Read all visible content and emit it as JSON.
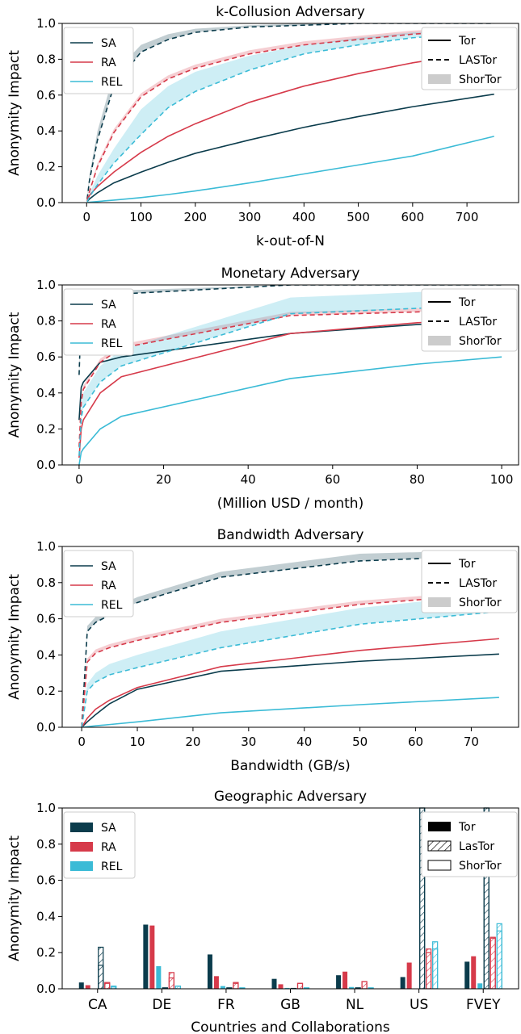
{
  "colors": {
    "SA": "#0b3c4c",
    "RA": "#d63a4a",
    "REL": "#3bbbd6",
    "tor": "#000000",
    "shortor_legend": "#cccccc"
  },
  "chart_data": [
    {
      "type": "line",
      "title": "k-Collusion Adversary",
      "xlabel": "k-out-of-N",
      "ylabel": "Anonymity Impact",
      "xlim": [
        -45,
        795
      ],
      "ylim": [
        0,
        1.0
      ],
      "xticks": [
        0,
        100,
        200,
        300,
        400,
        500,
        600,
        700
      ],
      "yticks": [
        0.0,
        0.2,
        0.4,
        0.6,
        0.8,
        1.0
      ],
      "x": [
        1,
        5,
        20,
        50,
        100,
        150,
        200,
        300,
        400,
        500,
        600,
        750
      ],
      "series": [
        {
          "name": "SA",
          "variant": "Tor",
          "values": [
            0.005,
            0.02,
            0.055,
            0.11,
            0.17,
            0.225,
            0.275,
            0.35,
            0.42,
            0.48,
            0.535,
            0.605
          ]
        },
        {
          "name": "RA",
          "variant": "Tor",
          "values": [
            0.01,
            0.04,
            0.09,
            0.17,
            0.28,
            0.37,
            0.44,
            0.56,
            0.65,
            0.72,
            0.78,
            0.85
          ]
        },
        {
          "name": "REL",
          "variant": "Tor",
          "values": [
            0.0,
            0.002,
            0.006,
            0.014,
            0.028,
            0.045,
            0.065,
            0.11,
            0.16,
            0.21,
            0.26,
            0.37
          ]
        },
        {
          "name": "SA",
          "variant": "LASTor",
          "values": [
            0.02,
            0.12,
            0.35,
            0.65,
            0.84,
            0.91,
            0.95,
            0.98,
            0.99,
            1.0,
            1.0,
            1.0
          ]
        },
        {
          "name": "RA",
          "variant": "LASTor",
          "values": [
            0.01,
            0.06,
            0.2,
            0.39,
            0.59,
            0.69,
            0.75,
            0.83,
            0.88,
            0.91,
            0.94,
            0.97
          ]
        },
        {
          "name": "REL",
          "variant": "LASTor",
          "values": [
            0.005,
            0.03,
            0.1,
            0.22,
            0.38,
            0.53,
            0.62,
            0.74,
            0.83,
            0.88,
            0.92,
            0.95
          ]
        }
      ],
      "bands": [
        {
          "name": "SA",
          "variant": "ShorTor",
          "lower": [
            0.02,
            0.12,
            0.35,
            0.65,
            0.84,
            0.91,
            0.95,
            0.98,
            0.99,
            1.0,
            1.0,
            1.0
          ],
          "upper": [
            0.03,
            0.15,
            0.4,
            0.72,
            0.88,
            0.94,
            0.97,
            0.99,
            1.0,
            1.0,
            1.0,
            1.0
          ]
        },
        {
          "name": "RA",
          "variant": "ShorTor",
          "lower": [
            0.01,
            0.06,
            0.2,
            0.39,
            0.59,
            0.69,
            0.75,
            0.83,
            0.88,
            0.91,
            0.94,
            0.97
          ],
          "upper": [
            0.015,
            0.07,
            0.22,
            0.41,
            0.61,
            0.71,
            0.77,
            0.85,
            0.9,
            0.93,
            0.96,
            0.98
          ]
        },
        {
          "name": "REL",
          "variant": "ShorTor",
          "lower": [
            0.005,
            0.03,
            0.1,
            0.22,
            0.38,
            0.53,
            0.62,
            0.74,
            0.83,
            0.88,
            0.92,
            0.95
          ],
          "upper": [
            0.01,
            0.05,
            0.15,
            0.3,
            0.52,
            0.65,
            0.73,
            0.82,
            0.88,
            0.92,
            0.95,
            0.97
          ]
        }
      ]
    },
    {
      "type": "line",
      "title": "Monetary Adversary",
      "xlabel": "(Million USD / month)",
      "ylabel": "Anonymity Impact",
      "xlim": [
        -4,
        104
      ],
      "ylim": [
        0,
        1.0
      ],
      "xticks": [
        0,
        20,
        40,
        60,
        80,
        100
      ],
      "yticks": [
        0.0,
        0.2,
        0.4,
        0.6,
        0.8,
        1.0
      ],
      "x": [
        0,
        0.5,
        1,
        5,
        10,
        50,
        80,
        100
      ],
      "series": [
        {
          "name": "SA",
          "variant": "Tor",
          "values": [
            0.25,
            0.43,
            0.46,
            0.57,
            0.6,
            0.73,
            0.78,
            0.8
          ]
        },
        {
          "name": "RA",
          "variant": "Tor",
          "values": [
            0.04,
            0.2,
            0.25,
            0.4,
            0.49,
            0.73,
            0.79,
            0.81
          ]
        },
        {
          "name": "REL",
          "variant": "Tor",
          "values": [
            0.0,
            0.07,
            0.09,
            0.2,
            0.27,
            0.48,
            0.56,
            0.6
          ]
        },
        {
          "name": "SA",
          "variant": "LASTor",
          "values": [
            0.5,
            0.85,
            0.88,
            0.93,
            0.95,
            1.0,
            1.0,
            1.0
          ]
        },
        {
          "name": "RA",
          "variant": "LASTor",
          "values": [
            0.1,
            0.35,
            0.42,
            0.57,
            0.65,
            0.83,
            0.85,
            0.87
          ]
        },
        {
          "name": "REL",
          "variant": "LASTor",
          "values": [
            0.05,
            0.26,
            0.32,
            0.46,
            0.55,
            0.84,
            0.87,
            0.89
          ]
        }
      ],
      "bands": [
        {
          "name": "SA",
          "variant": "ShorTor",
          "lower": [
            0.5,
            0.85,
            0.88,
            0.93,
            0.95,
            1.0,
            1.0,
            1.0
          ],
          "upper": [
            0.55,
            0.88,
            0.9,
            0.95,
            0.97,
            1.0,
            1.0,
            1.0
          ]
        },
        {
          "name": "RA",
          "variant": "ShorTor",
          "lower": [
            0.1,
            0.35,
            0.42,
            0.57,
            0.65,
            0.83,
            0.85,
            0.87
          ],
          "upper": [
            0.12,
            0.37,
            0.44,
            0.59,
            0.67,
            0.85,
            0.87,
            0.89
          ]
        },
        {
          "name": "REL",
          "variant": "ShorTor",
          "lower": [
            0.05,
            0.26,
            0.32,
            0.46,
            0.55,
            0.84,
            0.87,
            0.89
          ],
          "upper": [
            0.08,
            0.33,
            0.4,
            0.55,
            0.64,
            0.93,
            0.96,
            0.98
          ]
        }
      ]
    },
    {
      "type": "line",
      "title": "Bandwidth Adversary",
      "xlabel": "Bandwidth (GB/s)",
      "ylabel": "Anonymity Impact",
      "xlim": [
        -3.5,
        78.5
      ],
      "ylim": [
        0,
        1.0
      ],
      "xticks": [
        0,
        10,
        20,
        30,
        40,
        50,
        60,
        70
      ],
      "yticks": [
        0.0,
        0.2,
        0.4,
        0.6,
        0.8,
        1.0
      ],
      "x": [
        0,
        1,
        2.5,
        5,
        10,
        25,
        50,
        75
      ],
      "series": [
        {
          "name": "SA",
          "variant": "Tor",
          "values": [
            0.0,
            0.03,
            0.07,
            0.13,
            0.21,
            0.31,
            0.365,
            0.405
          ]
        },
        {
          "name": "RA",
          "variant": "Tor",
          "values": [
            0.0,
            0.05,
            0.1,
            0.15,
            0.22,
            0.335,
            0.425,
            0.49
          ]
        },
        {
          "name": "REL",
          "variant": "Tor",
          "values": [
            0.0,
            0.003,
            0.008,
            0.015,
            0.03,
            0.08,
            0.125,
            0.165
          ]
        },
        {
          "name": "SA",
          "variant": "LASTor",
          "values": [
            0.0,
            0.53,
            0.58,
            0.62,
            0.69,
            0.83,
            0.92,
            0.95
          ]
        },
        {
          "name": "RA",
          "variant": "LASTor",
          "values": [
            0.0,
            0.36,
            0.41,
            0.44,
            0.48,
            0.58,
            0.68,
            0.74
          ]
        },
        {
          "name": "REL",
          "variant": "LASTor",
          "values": [
            0.0,
            0.2,
            0.25,
            0.29,
            0.33,
            0.44,
            0.57,
            0.64
          ]
        }
      ],
      "bands": [
        {
          "name": "SA",
          "variant": "ShorTor",
          "lower": [
            0.0,
            0.53,
            0.58,
            0.62,
            0.69,
            0.83,
            0.92,
            0.95
          ],
          "upper": [
            0.0,
            0.56,
            0.61,
            0.65,
            0.72,
            0.86,
            0.96,
            0.98
          ]
        },
        {
          "name": "RA",
          "variant": "ShorTor",
          "lower": [
            0.0,
            0.36,
            0.41,
            0.44,
            0.48,
            0.58,
            0.68,
            0.74
          ],
          "upper": [
            0.0,
            0.38,
            0.43,
            0.46,
            0.5,
            0.6,
            0.7,
            0.76
          ]
        },
        {
          "name": "REL",
          "variant": "ShorTor",
          "lower": [
            0.0,
            0.2,
            0.25,
            0.29,
            0.33,
            0.44,
            0.57,
            0.64
          ],
          "upper": [
            0.0,
            0.24,
            0.3,
            0.35,
            0.4,
            0.53,
            0.66,
            0.74
          ]
        }
      ]
    },
    {
      "type": "bar",
      "title": "Geographic Adversary",
      "xlabel": "Countries and Collaborations",
      "ylabel": "Anonymity Impact",
      "ylim": [
        0,
        1.0
      ],
      "yticks": [
        0.0,
        0.2,
        0.4,
        0.6,
        0.8,
        1.0
      ],
      "categories": [
        "CA",
        "DE",
        "FR",
        "GB",
        "NL",
        "US",
        "FVEY"
      ],
      "series": [
        {
          "name": "SA",
          "variant": "Tor",
          "values": [
            0.035,
            0.355,
            0.19,
            0.055,
            0.075,
            0.065,
            0.15
          ]
        },
        {
          "name": "RA",
          "variant": "Tor",
          "values": [
            0.02,
            0.35,
            0.07,
            0.025,
            0.095,
            0.145,
            0.18
          ]
        },
        {
          "name": "REL",
          "variant": "Tor",
          "values": [
            0.0,
            0.125,
            0.015,
            0.005,
            0.01,
            0.0,
            0.03
          ]
        },
        {
          "name": "SA",
          "variant": "LasTor",
          "values": [
            0.23,
            0.005,
            0.005,
            0.002,
            0.005,
            1.0,
            1.0
          ]
        },
        {
          "name": "RA",
          "variant": "LasTor",
          "values": [
            0.035,
            0.09,
            0.035,
            0.03,
            0.04,
            0.22,
            0.285
          ]
        },
        {
          "name": "REL",
          "variant": "LasTor",
          "values": [
            0.015,
            0.015,
            0.005,
            0.005,
            0.005,
            0.26,
            0.36
          ]
        },
        {
          "name": "SA",
          "variant": "ShorTor",
          "values": [
            0.13,
            0.005,
            0.005,
            0.002,
            0.005,
            1.0,
            1.0
          ]
        },
        {
          "name": "RA",
          "variant": "ShorTor",
          "values": [
            0.03,
            0.06,
            0.03,
            0.03,
            0.04,
            0.2,
            0.28
          ]
        },
        {
          "name": "REL",
          "variant": "ShorTor",
          "values": [
            0.01,
            0.015,
            0.005,
            0.005,
            0.005,
            0.22,
            0.32
          ]
        }
      ]
    }
  ],
  "legends": {
    "series": [
      "SA",
      "RA",
      "REL"
    ],
    "line_styles": [
      "Tor",
      "LASTor",
      "ShorTor"
    ],
    "bar_styles": [
      "Tor",
      "LasTor",
      "ShorTor"
    ]
  }
}
